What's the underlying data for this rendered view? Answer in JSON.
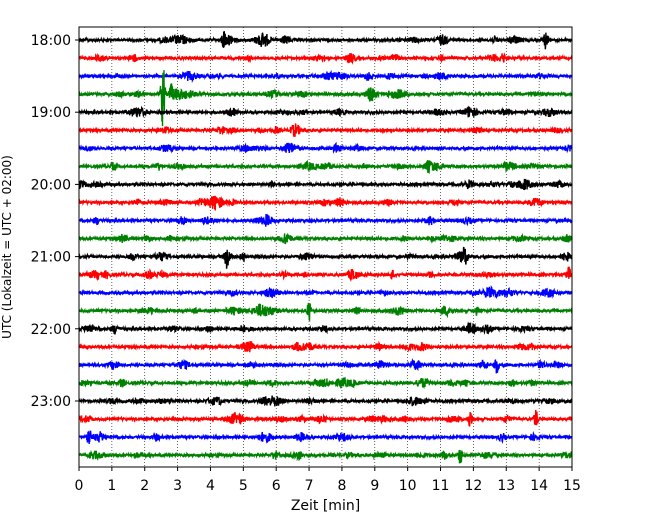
{
  "chart_data": {
    "type": "line",
    "title": "",
    "xlabel": "Zeit  [min]",
    "ylabel": "UTC (Lokalzeit = UTC + 02:00)",
    "xlim": [
      0,
      15
    ],
    "x_ticks": [
      "0",
      "1",
      "2",
      "3",
      "4",
      "5",
      "6",
      "7",
      "8",
      "9",
      "10",
      "11",
      "12",
      "13",
      "14",
      "15"
    ],
    "y_tick_labels": [
      "18:00",
      "19:00",
      "20:00",
      "21:00",
      "22:00",
      "23:00"
    ],
    "grid": "vertical dotted",
    "legend": "none",
    "trace_interval_minutes": 15,
    "color_cycle": [
      "#000000",
      "#ff0000",
      "#0000ff",
      "#008000"
    ],
    "traces": [
      {
        "start": "18:00",
        "color": "#000000"
      },
      {
        "start": "18:15",
        "color": "#ff0000"
      },
      {
        "start": "18:30",
        "color": "#0000ff"
      },
      {
        "start": "18:45",
        "color": "#008000"
      },
      {
        "start": "19:00",
        "color": "#000000"
      },
      {
        "start": "19:15",
        "color": "#ff0000"
      },
      {
        "start": "19:30",
        "color": "#0000ff"
      },
      {
        "start": "19:45",
        "color": "#008000"
      },
      {
        "start": "20:00",
        "color": "#000000"
      },
      {
        "start": "20:15",
        "color": "#ff0000"
      },
      {
        "start": "20:30",
        "color": "#0000ff"
      },
      {
        "start": "20:45",
        "color": "#008000"
      },
      {
        "start": "21:00",
        "color": "#000000"
      },
      {
        "start": "21:15",
        "color": "#ff0000"
      },
      {
        "start": "21:30",
        "color": "#0000ff"
      },
      {
        "start": "21:45",
        "color": "#008000"
      },
      {
        "start": "22:00",
        "color": "#000000"
      },
      {
        "start": "22:15",
        "color": "#ff0000"
      },
      {
        "start": "22:30",
        "color": "#0000ff"
      },
      {
        "start": "22:45",
        "color": "#008000"
      },
      {
        "start": "23:00",
        "color": "#000000"
      },
      {
        "start": "23:15",
        "color": "#ff0000"
      },
      {
        "start": "23:30",
        "color": "#0000ff"
      },
      {
        "start": "23:45",
        "color": "#008000"
      }
    ],
    "events": [
      {
        "trace": "18:00",
        "minute": 4.4
      },
      {
        "trace": "18:00",
        "minute": 14.2
      },
      {
        "trace": "18:45",
        "minute": 2.55
      },
      {
        "trace": "18:45",
        "minute": 2.8
      },
      {
        "trace": "21:00",
        "minute": 4.5
      },
      {
        "trace": "21:00",
        "minute": 11.75
      },
      {
        "trace": "21:15",
        "minute": 14.9
      },
      {
        "trace": "21:45",
        "minute": 7.0
      },
      {
        "trace": "22:30",
        "minute": 12.7
      },
      {
        "trace": "23:15",
        "minute": 11.9
      },
      {
        "trace": "23:15",
        "minute": 13.9
      },
      {
        "trace": "23:30",
        "minute": 0.3
      },
      {
        "trace": "23:45",
        "minute": 11.6
      }
    ]
  }
}
